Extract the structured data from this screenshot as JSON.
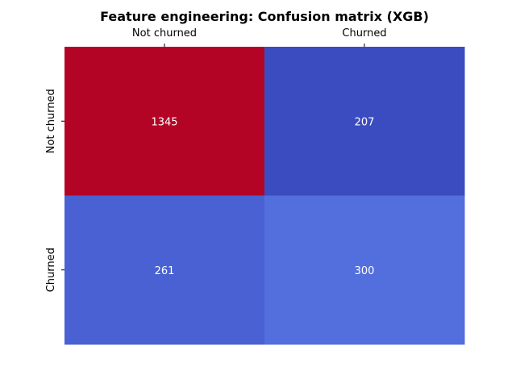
{
  "chart_data": {
    "type": "heatmap",
    "title": "Feature engineering: Confusion matrix (XGB)",
    "x_tick_labels": [
      "Not churned",
      "Churned"
    ],
    "y_tick_labels": [
      "Not churned",
      "Churned"
    ],
    "values": [
      [
        1345,
        207
      ],
      [
        261,
        300
      ]
    ],
    "colormap": "coolwarm",
    "cell_colors": [
      [
        "#b40426",
        "#3b4cc0"
      ],
      [
        "#4961d2",
        "#536edd"
      ]
    ],
    "x_tick_position": "top",
    "colorbar": false,
    "grid": false
  }
}
